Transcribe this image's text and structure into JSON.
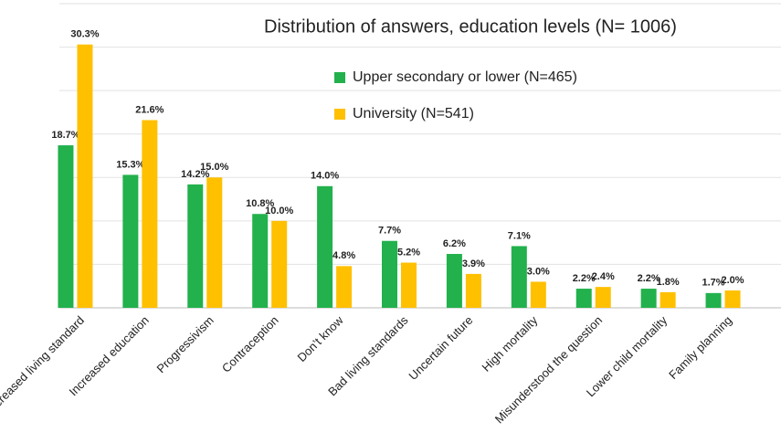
{
  "chart_data": {
    "type": "bar",
    "title": "Distribution of answers, education levels (N= 1006)",
    "categories": [
      "Increased living standard",
      "Increased education",
      "Progressivism",
      "Contraception",
      "Don’t know",
      "Bad living standards",
      "Uncertain future",
      "High mortality",
      "Misunderstood the question",
      "Lower child mortality",
      "Family planning"
    ],
    "series": [
      {
        "name": "Upper secondary or lower (N=465)",
        "color": "#22b14c",
        "values": [
          18.7,
          15.3,
          14.2,
          10.8,
          14.0,
          7.7,
          6.2,
          7.1,
          2.2,
          2.2,
          1.7
        ],
        "value_labels": [
          "18.7%",
          "15.3%",
          "14.2%",
          "10.8%",
          "14.0%",
          "7.7%",
          "6.2%",
          "7.1%",
          "2.2%",
          "2.2%",
          "1.7%"
        ]
      },
      {
        "name": "University (N=541)",
        "color": "#ffc000",
        "values": [
          30.3,
          21.6,
          15.0,
          10.0,
          4.8,
          5.2,
          3.9,
          3.0,
          2.4,
          1.8,
          2.0
        ],
        "value_labels": [
          "30.3%",
          "21.6%",
          "15.0%",
          "10.0%",
          "4.8%",
          "5.2%",
          "3.9%",
          "3.0%",
          "2.4%",
          "1.8%",
          "2.0%"
        ]
      }
    ],
    "ylim": [
      0,
      35
    ],
    "yticks": [
      0,
      5,
      10,
      15,
      20,
      25,
      30,
      35
    ],
    "grid": true
  }
}
